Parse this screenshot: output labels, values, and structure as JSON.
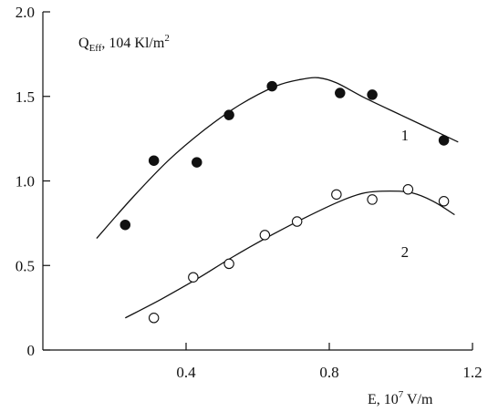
{
  "chart_data": {
    "type": "scatter",
    "title": "",
    "ylabel": {
      "main": "Q",
      "sub": "Eff",
      "rest": ", 104 Kl/m",
      "sup": "2"
    },
    "xlabel": {
      "main": "E, 10",
      "sup": "7",
      "rest": " V/m"
    },
    "xlim": [
      0,
      1.2
    ],
    "ylim": [
      0,
      2.0
    ],
    "xticks": [
      0.4,
      0.8,
      1.2
    ],
    "xtick_labels": [
      "0.4",
      "0.8",
      "1.2"
    ],
    "yticks": [
      0,
      0.5,
      1.0,
      1.5,
      2.0
    ],
    "ytick_labels": [
      "0",
      "0.5",
      "1.0",
      "1.5",
      "2.0"
    ],
    "grid": false,
    "series": [
      {
        "name": "1",
        "marker": "filled-circle",
        "points": [
          [
            0.23,
            0.74
          ],
          [
            0.31,
            1.12
          ],
          [
            0.43,
            1.11
          ],
          [
            0.52,
            1.39
          ],
          [
            0.64,
            1.56
          ],
          [
            0.83,
            1.52
          ],
          [
            0.92,
            1.51
          ],
          [
            1.12,
            1.24
          ]
        ],
        "fit": [
          [
            0.15,
            0.66
          ],
          [
            0.25,
            0.9
          ],
          [
            0.35,
            1.12
          ],
          [
            0.45,
            1.3
          ],
          [
            0.55,
            1.45
          ],
          [
            0.65,
            1.56
          ],
          [
            0.72,
            1.6
          ],
          [
            0.77,
            1.61
          ],
          [
            0.82,
            1.58
          ],
          [
            0.9,
            1.49
          ],
          [
            1.0,
            1.39
          ],
          [
            1.08,
            1.31
          ],
          [
            1.16,
            1.23
          ]
        ]
      },
      {
        "name": "2",
        "marker": "open-circle",
        "points": [
          [
            0.31,
            0.19
          ],
          [
            0.42,
            0.43
          ],
          [
            0.52,
            0.51
          ],
          [
            0.62,
            0.68
          ],
          [
            0.71,
            0.76
          ],
          [
            0.82,
            0.92
          ],
          [
            0.92,
            0.89
          ],
          [
            1.02,
            0.95
          ],
          [
            1.12,
            0.88
          ]
        ],
        "fit": [
          [
            0.23,
            0.19
          ],
          [
            0.33,
            0.3
          ],
          [
            0.43,
            0.42
          ],
          [
            0.53,
            0.55
          ],
          [
            0.63,
            0.67
          ],
          [
            0.73,
            0.78
          ],
          [
            0.83,
            0.88
          ],
          [
            0.9,
            0.93
          ],
          [
            0.97,
            0.94
          ],
          [
            1.03,
            0.93
          ],
          [
            1.09,
            0.88
          ],
          [
            1.15,
            0.8
          ]
        ]
      }
    ]
  }
}
